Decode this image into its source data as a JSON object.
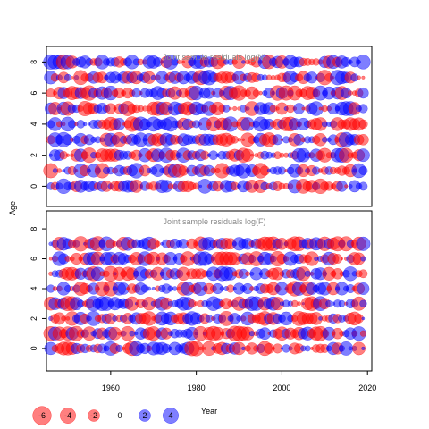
{
  "chart_data": {
    "type": "scatter",
    "encoding": "bubble size = |residual|, red = negative, blue = positive",
    "ylabel": "Age",
    "xlabel": "Year",
    "xlim": [
      1945,
      2021
    ],
    "x_ticks": [
      "1960",
      "1980",
      "2000",
      "2020"
    ],
    "y_ticks": [
      "0",
      "2",
      "4",
      "6",
      "8"
    ],
    "years": {
      "start": 1946,
      "end": 2019
    },
    "colors": {
      "negative": "#ff0000",
      "positive": "#0000ff",
      "title": "#888888"
    },
    "panels": [
      {
        "title": "Joint sample residuals log(N)",
        "ylim": [
          -1.3,
          9.0
        ],
        "ages": [
          0,
          1,
          2,
          3,
          4,
          5,
          6,
          7,
          8
        ]
      },
      {
        "title": "Joint sample residuals log(F)",
        "ylim": [
          -1.5,
          9.2
        ],
        "ages": [
          0,
          1,
          2,
          3,
          4,
          5,
          6,
          7
        ]
      }
    ],
    "legend": {
      "placement": "bottom-left",
      "values": [
        -6,
        -4,
        -2,
        0,
        2,
        4
      ],
      "labels": [
        "-6",
        "-4",
        "-2",
        "0",
        "2",
        "4"
      ]
    }
  }
}
